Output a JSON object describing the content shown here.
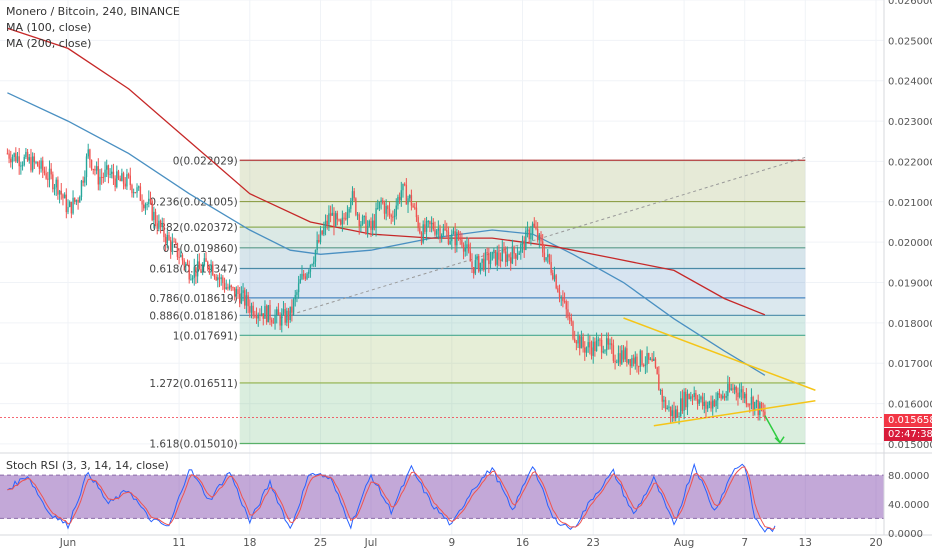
{
  "header": {
    "symbol_line": "Monero / Bitcoin, 240, BINANCE",
    "ma1_label": "MA (100, close)",
    "ma2_label": "MA (200, close)"
  },
  "rsi_label": "Stoch RSI (3, 3, 14, 14, close)",
  "price_badge": {
    "value": "0.015658",
    "timer": "02:47:38",
    "color": "#f23645"
  },
  "colors": {
    "up": "#26a69a",
    "down": "#ef5350",
    "ma100": "#4a90c2",
    "ma200": "#c62828",
    "trend": "#f5c518",
    "arrow": "#2ecc40",
    "k": "#2962ff",
    "d": "#ef5350",
    "rsi_band": "#7b3fa8"
  },
  "x_axis": {
    "ticks": [
      {
        "label": "Jun",
        "day": 0
      },
      {
        "label": "11",
        "day": 11
      },
      {
        "label": "18",
        "day": 18
      },
      {
        "label": "25",
        "day": 25
      },
      {
        "label": "Jul",
        "day": 30
      },
      {
        "label": "9",
        "day": 38
      },
      {
        "label": "16",
        "day": 45
      },
      {
        "label": "23",
        "day": 52
      },
      {
        "label": "Aug",
        "day": 61
      },
      {
        "label": "7",
        "day": 67
      },
      {
        "label": "13",
        "day": 73
      },
      {
        "label": "20",
        "day": 80
      }
    ]
  },
  "chart_data": [
    {
      "type": "candlestick",
      "title": "Monero / Bitcoin, 240, BINANCE",
      "ylim": [
        0.0148,
        0.026
      ],
      "y_ticks": [
        "0.026000",
        "0.025000",
        "0.024000",
        "0.023000",
        "0.022000",
        "0.021000",
        "0.020000",
        "0.019000",
        "0.018000",
        "0.017000",
        "0.016000",
        "0.015000"
      ],
      "close_anchors": [
        {
          "day": -6,
          "close": 0.0222
        },
        {
          "day": -3,
          "close": 0.0219
        },
        {
          "day": -1,
          "close": 0.0214
        },
        {
          "day": 0,
          "close": 0.0208
        },
        {
          "day": 1,
          "close": 0.0211
        },
        {
          "day": 2,
          "close": 0.0222
        },
        {
          "day": 3,
          "close": 0.0216
        },
        {
          "day": 4,
          "close": 0.0217
        },
        {
          "day": 5,
          "close": 0.0215
        },
        {
          "day": 6,
          "close": 0.0215
        },
        {
          "day": 8,
          "close": 0.0209
        },
        {
          "day": 9,
          "close": 0.0204
        },
        {
          "day": 10,
          "close": 0.02
        },
        {
          "day": 11,
          "close": 0.0197
        },
        {
          "day": 12,
          "close": 0.0193
        },
        {
          "day": 13,
          "close": 0.0193
        },
        {
          "day": 14,
          "close": 0.0195
        },
        {
          "day": 15,
          "close": 0.0191
        },
        {
          "day": 16,
          "close": 0.0188
        },
        {
          "day": 17,
          "close": 0.0187
        },
        {
          "day": 18,
          "close": 0.0184
        },
        {
          "day": 20,
          "close": 0.0182
        },
        {
          "day": 21,
          "close": 0.0181
        },
        {
          "day": 22,
          "close": 0.0182
        },
        {
          "day": 23,
          "close": 0.019
        },
        {
          "day": 24,
          "close": 0.0195
        },
        {
          "day": 25,
          "close": 0.0201
        },
        {
          "day": 26,
          "close": 0.0207
        },
        {
          "day": 27,
          "close": 0.0203
        },
        {
          "day": 28,
          "close": 0.0212
        },
        {
          "day": 29,
          "close": 0.0205
        },
        {
          "day": 30,
          "close": 0.0203
        },
        {
          "day": 31,
          "close": 0.021
        },
        {
          "day": 32,
          "close": 0.0206
        },
        {
          "day": 33,
          "close": 0.0213
        },
        {
          "day": 34,
          "close": 0.021
        },
        {
          "day": 35,
          "close": 0.0202
        },
        {
          "day": 36,
          "close": 0.0204
        },
        {
          "day": 37,
          "close": 0.0203
        },
        {
          "day": 38,
          "close": 0.0201
        },
        {
          "day": 39,
          "close": 0.0201
        },
        {
          "day": 40,
          "close": 0.0194
        },
        {
          "day": 41,
          "close": 0.0195
        },
        {
          "day": 42,
          "close": 0.0196
        },
        {
          "day": 44,
          "close": 0.0197
        },
        {
          "day": 45,
          "close": 0.0199
        },
        {
          "day": 46,
          "close": 0.0204
        },
        {
          "day": 47,
          "close": 0.0198
        },
        {
          "day": 48,
          "close": 0.0193
        },
        {
          "day": 49,
          "close": 0.0185
        },
        {
          "day": 50,
          "close": 0.0178
        },
        {
          "day": 51,
          "close": 0.0174
        },
        {
          "day": 52,
          "close": 0.0174
        },
        {
          "day": 53,
          "close": 0.0175
        },
        {
          "day": 54,
          "close": 0.0172
        },
        {
          "day": 55,
          "close": 0.0172
        },
        {
          "day": 56,
          "close": 0.0171
        },
        {
          "day": 57,
          "close": 0.0171
        },
        {
          "day": 58,
          "close": 0.0169
        },
        {
          "day": 59,
          "close": 0.016
        },
        {
          "day": 60,
          "close": 0.0157
        },
        {
          "day": 61,
          "close": 0.0161
        },
        {
          "day": 62,
          "close": 0.0163
        },
        {
          "day": 63,
          "close": 0.0159
        },
        {
          "day": 64,
          "close": 0.0161
        },
        {
          "day": 65,
          "close": 0.0162
        },
        {
          "day": 66,
          "close": 0.0164
        },
        {
          "day": 67,
          "close": 0.0162
        },
        {
          "day": 68,
          "close": 0.016
        },
        {
          "day": 69,
          "close": 0.015658
        }
      ],
      "ma100": [
        {
          "day": -6,
          "value": 0.0237
        },
        {
          "day": 0,
          "value": 0.023
        },
        {
          "day": 6,
          "value": 0.0222
        },
        {
          "day": 12,
          "value": 0.0212
        },
        {
          "day": 18,
          "value": 0.0203
        },
        {
          "day": 22,
          "value": 0.0198
        },
        {
          "day": 25,
          "value": 0.0197
        },
        {
          "day": 30,
          "value": 0.0198
        },
        {
          "day": 36,
          "value": 0.0201
        },
        {
          "day": 42,
          "value": 0.0203
        },
        {
          "day": 46,
          "value": 0.0202
        },
        {
          "day": 50,
          "value": 0.0197
        },
        {
          "day": 55,
          "value": 0.019
        },
        {
          "day": 60,
          "value": 0.0181
        },
        {
          "day": 65,
          "value": 0.0173
        },
        {
          "day": 69,
          "value": 0.0167
        }
      ],
      "ma200": [
        {
          "day": -6,
          "value": 0.0253
        },
        {
          "day": 0,
          "value": 0.0248
        },
        {
          "day": 6,
          "value": 0.0238
        },
        {
          "day": 12,
          "value": 0.0225
        },
        {
          "day": 18,
          "value": 0.0212
        },
        {
          "day": 24,
          "value": 0.0205
        },
        {
          "day": 30,
          "value": 0.0202
        },
        {
          "day": 36,
          "value": 0.0201
        },
        {
          "day": 42,
          "value": 0.0201
        },
        {
          "day": 48,
          "value": 0.0199
        },
        {
          "day": 54,
          "value": 0.0196
        },
        {
          "day": 60,
          "value": 0.0193
        },
        {
          "day": 65,
          "value": 0.0186
        },
        {
          "day": 69,
          "value": 0.0182
        }
      ],
      "fibonacci": {
        "start_day": 17,
        "end_day": 73,
        "levels": [
          {
            "label": "0(0.022029)",
            "value": 0.022029,
            "color": "#b23b3b"
          },
          {
            "label": "0.236(0.021005)",
            "value": 0.021005,
            "color": "#8fa04a"
          },
          {
            "label": "0.382(0.020372)",
            "value": 0.020372,
            "color": "#8fae58"
          },
          {
            "label": "0.5(0.019860)",
            "value": 0.01986,
            "color": "#5a9a8a"
          },
          {
            "label": "0.618(0.019347)",
            "value": 0.019347,
            "color": "#4a8aa6"
          },
          {
            "label": "0.786(0.018619)",
            "value": 0.018619,
            "color": "#4a86c0"
          },
          {
            "label": "0.886(0.018186)",
            "value": 0.018186,
            "color": "#5a96b0"
          },
          {
            "label": "1(0.017691)",
            "value": 0.017691,
            "color": "#48a890"
          },
          {
            "label": "1.272(0.016511)",
            "value": 0.016511,
            "color": "#8fb04a"
          },
          {
            "label": "1.618(0.015010)",
            "value": 0.01501,
            "color": "#58b068"
          }
        ]
      },
      "fib_diagonal": {
        "start_day": 21,
        "start_value": 0.01812,
        "end_day": 73,
        "end_value": 0.0221
      },
      "trendlines": [
        {
          "x1_day": 55,
          "y1": 0.01812,
          "x2_day": 74,
          "y2": 0.01633
        },
        {
          "x1_day": 58,
          "y1": 0.01545,
          "x2_day": 74,
          "y2": 0.01607
        }
      ],
      "projection_arrow": {
        "x1_day": 69,
        "y1": 0.0157,
        "x2_day": 70.5,
        "y2": 0.01503
      },
      "last_price": 0.015658
    },
    {
      "type": "line",
      "title": "Stoch RSI (3, 3, 14, 14, close)",
      "ylim": [
        -3,
        108
      ],
      "y_ticks": [
        "80.0000",
        "40.0000",
        "0.0000"
      ],
      "bands": [
        80,
        20
      ],
      "k_anchors": [
        {
          "day": -6,
          "value": 60
        },
        {
          "day": -4,
          "value": 80
        },
        {
          "day": -2,
          "value": 30
        },
        {
          "day": 0,
          "value": 10
        },
        {
          "day": 2,
          "value": 85
        },
        {
          "day": 4,
          "value": 40
        },
        {
          "day": 6,
          "value": 60
        },
        {
          "day": 8,
          "value": 20
        },
        {
          "day": 10,
          "value": 8
        },
        {
          "day": 12,
          "value": 90
        },
        {
          "day": 14,
          "value": 45
        },
        {
          "day": 16,
          "value": 85
        },
        {
          "day": 18,
          "value": 15
        },
        {
          "day": 20,
          "value": 70
        },
        {
          "day": 22,
          "value": 5
        },
        {
          "day": 24,
          "value": 85
        },
        {
          "day": 26,
          "value": 75
        },
        {
          "day": 28,
          "value": 10
        },
        {
          "day": 30,
          "value": 80
        },
        {
          "day": 32,
          "value": 30
        },
        {
          "day": 34,
          "value": 90
        },
        {
          "day": 36,
          "value": 40
        },
        {
          "day": 38,
          "value": 10
        },
        {
          "day": 40,
          "value": 60
        },
        {
          "day": 42,
          "value": 90
        },
        {
          "day": 44,
          "value": 30
        },
        {
          "day": 46,
          "value": 95
        },
        {
          "day": 48,
          "value": 20
        },
        {
          "day": 50,
          "value": 5
        },
        {
          "day": 52,
          "value": 50
        },
        {
          "day": 54,
          "value": 85
        },
        {
          "day": 56,
          "value": 25
        },
        {
          "day": 58,
          "value": 75
        },
        {
          "day": 60,
          "value": 10
        },
        {
          "day": 62,
          "value": 95
        },
        {
          "day": 64,
          "value": 30
        },
        {
          "day": 66,
          "value": 90
        },
        {
          "day": 67,
          "value": 95
        },
        {
          "day": 68,
          "value": 20
        },
        {
          "day": 69,
          "value": 3
        },
        {
          "day": 70,
          "value": 6
        }
      ]
    }
  ]
}
